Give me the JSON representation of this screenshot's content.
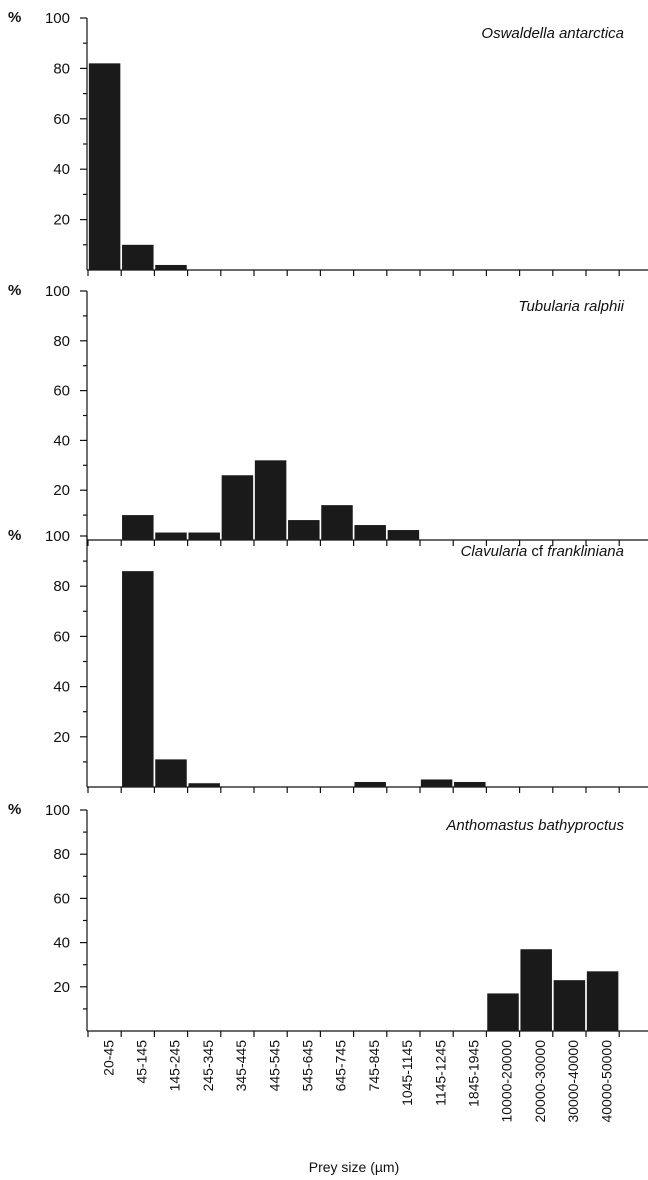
{
  "chart_data": {
    "type": "bar",
    "xlabel": "Prey size (µm)",
    "ylabel": "%",
    "ylim": [
      0,
      100
    ],
    "yticks": [
      20,
      40,
      60,
      80,
      100
    ],
    "categories": [
      "20-45",
      "45-145",
      "145-245",
      "245-345",
      "345-445",
      "445-545",
      "545-645",
      "645-745",
      "745-845",
      "1045-1145",
      "1145-1245",
      "1845-1945",
      "10000-20000",
      "20000-30000",
      "30000-40000",
      "40000-50000"
    ],
    "panels": [
      {
        "title": "Oswaldella antarctica",
        "values": [
          82,
          10,
          2,
          0,
          0,
          0,
          0,
          0,
          0,
          0,
          0,
          0,
          0,
          0,
          0,
          0
        ]
      },
      {
        "title": "Tubularia ralphii",
        "values": [
          0,
          10,
          3,
          3,
          26,
          32,
          8,
          14,
          6,
          4,
          0,
          0,
          0,
          0,
          0,
          0
        ]
      },
      {
        "title_main": "Clavularia",
        "title_mid": " cf ",
        "title_end": "frankliniana",
        "values": [
          0,
          86,
          11,
          1.5,
          0,
          0,
          0,
          0,
          2,
          0,
          3,
          2,
          0,
          0,
          0,
          0
        ]
      },
      {
        "title": "Anthomastus bathyproctus",
        "values": [
          0,
          0,
          0,
          0,
          0,
          0,
          0,
          0,
          0,
          0,
          0,
          0,
          17,
          37,
          23,
          27
        ]
      }
    ]
  }
}
